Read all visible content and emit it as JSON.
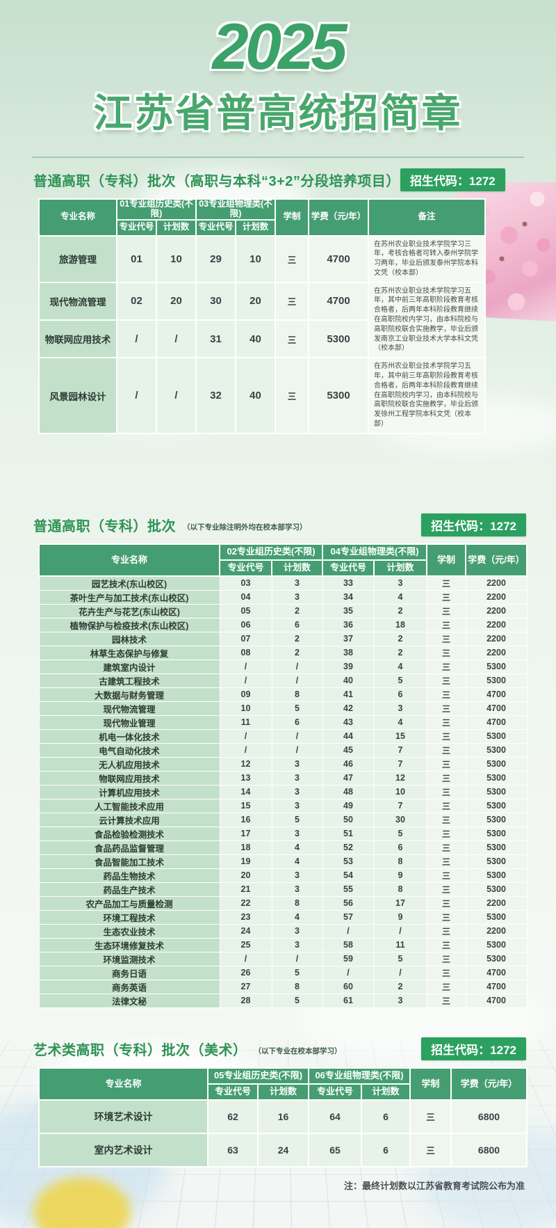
{
  "page": {
    "year": "2025",
    "title": "江苏省普高统招简章",
    "footer_note": "注：最终计划数以江苏省教育考试院公布为准"
  },
  "colors": {
    "accent_green": "#2e9355",
    "badge_bg": "#2ca05f",
    "table_header_bg": "#459e72",
    "name_column_bg": "#c3e1ca",
    "cell_bg": "#e7f2e8",
    "blossom_pink": "#f3bdd2"
  },
  "sections": [
    {
      "title": "普通高职（专科）批次（高职与本科“3+2”分段培养项目）",
      "note": "",
      "code_badge": "招生代码：1272",
      "table": {
        "col_name": "专业名称",
        "group_history": "01专业组历史类(不限)",
        "group_physics": "03专业组物理类(不限)",
        "sub_code": "专业代号",
        "sub_plan": "计划数",
        "col_term": "学制",
        "col_fee": "学费（元/年）",
        "col_remark": "备注",
        "rows": [
          {
            "name": "旅游管理",
            "h_code": "01",
            "h_plan": "10",
            "p_code": "29",
            "p_plan": "10",
            "term": "三",
            "fee": "4700",
            "remark": "在苏州农业职业技术学院学习三年，考核合格者可转入泰州学院学习两年，毕业后颁发泰州学院本科文凭（校本部）"
          },
          {
            "name": "现代物流管理",
            "h_code": "02",
            "h_plan": "20",
            "p_code": "30",
            "p_plan": "20",
            "term": "三",
            "fee": "4700",
            "remark": "在苏州农业职业技术学院学习五年，其中前三年高职阶段教育考核合格者，后两年本科阶段教育继续在高职院校内学习，由本科院校与高职院校联合实施教学，毕业后颁发南京工业职业技术大学本科文凭（校本部）"
          },
          {
            "name": "物联网应用技术",
            "h_code": "/",
            "h_plan": "/",
            "p_code": "31",
            "p_plan": "40",
            "term": "三",
            "fee": "5300"
          },
          {
            "name": "风景园林设计",
            "h_code": "/",
            "h_plan": "/",
            "p_code": "32",
            "p_plan": "40",
            "term": "三",
            "fee": "5300",
            "remark": "在苏州农业职业技术学院学习五年，其中前三年高职阶段教育考核合格者，后两年本科阶段教育继续在高职院校内学习，由本科院校与高职院校联合实施教学，毕业后颁发徐州工程学院本科文凭（校本部）"
          }
        ]
      }
    },
    {
      "title": "普通高职（专科）批次",
      "note": "（以下专业除注明外均在校本部学习）",
      "code_badge": "招生代码：1272",
      "table": {
        "col_name": "专业名称",
        "group_history": "02专业组历史类(不限)",
        "group_physics": "04专业组物理类(不限)",
        "sub_code": "专业代号",
        "sub_plan": "计划数",
        "col_term": "学制",
        "col_fee": "学费（元/年）",
        "rows": [
          [
            "园艺技术(东山校区)",
            "03",
            "3",
            "33",
            "3",
            "三",
            "2200"
          ],
          [
            "茶叶生产与加工技术(东山校区)",
            "04",
            "3",
            "34",
            "4",
            "三",
            "2200"
          ],
          [
            "花卉生产与花艺(东山校区)",
            "05",
            "2",
            "35",
            "2",
            "三",
            "2200"
          ],
          [
            "植物保护与检疫技术(东山校区)",
            "06",
            "6",
            "36",
            "18",
            "三",
            "2200"
          ],
          [
            "园林技术",
            "07",
            "2",
            "37",
            "2",
            "三",
            "2200"
          ],
          [
            "林草生态保护与修复",
            "08",
            "2",
            "38",
            "2",
            "三",
            "2200"
          ],
          [
            "建筑室内设计",
            "/",
            "/",
            "39",
            "4",
            "三",
            "5300"
          ],
          [
            "古建筑工程技术",
            "/",
            "/",
            "40",
            "5",
            "三",
            "5300"
          ],
          [
            "大数据与财务管理",
            "09",
            "8",
            "41",
            "6",
            "三",
            "4700"
          ],
          [
            "现代物流管理",
            "10",
            "5",
            "42",
            "3",
            "三",
            "4700"
          ],
          [
            "现代物业管理",
            "11",
            "6",
            "43",
            "4",
            "三",
            "4700"
          ],
          [
            "机电一体化技术",
            "/",
            "/",
            "44",
            "15",
            "三",
            "5300"
          ],
          [
            "电气自动化技术",
            "/",
            "/",
            "45",
            "7",
            "三",
            "5300"
          ],
          [
            "无人机应用技术",
            "12",
            "3",
            "46",
            "7",
            "三",
            "5300"
          ],
          [
            "物联网应用技术",
            "13",
            "3",
            "47",
            "12",
            "三",
            "5300"
          ],
          [
            "计算机应用技术",
            "14",
            "3",
            "48",
            "10",
            "三",
            "5300"
          ],
          [
            "人工智能技术应用",
            "15",
            "3",
            "49",
            "7",
            "三",
            "5300"
          ],
          [
            "云计算技术应用",
            "16",
            "5",
            "50",
            "30",
            "三",
            "5300"
          ],
          [
            "食品检验检测技术",
            "17",
            "3",
            "51",
            "5",
            "三",
            "5300"
          ],
          [
            "食品药品监督管理",
            "18",
            "4",
            "52",
            "6",
            "三",
            "5300"
          ],
          [
            "食品智能加工技术",
            "19",
            "4",
            "53",
            "8",
            "三",
            "5300"
          ],
          [
            "药品生物技术",
            "20",
            "3",
            "54",
            "9",
            "三",
            "5300"
          ],
          [
            "药品生产技术",
            "21",
            "3",
            "55",
            "8",
            "三",
            "5300"
          ],
          [
            "农产品加工与质量检测",
            "22",
            "8",
            "56",
            "17",
            "三",
            "2200"
          ],
          [
            "环境工程技术",
            "23",
            "4",
            "57",
            "9",
            "三",
            "5300"
          ],
          [
            "生态农业技术",
            "24",
            "3",
            "/",
            "/",
            "三",
            "2200"
          ],
          [
            "生态环境修复技术",
            "25",
            "3",
            "58",
            "11",
            "三",
            "5300"
          ],
          [
            "环境监测技术",
            "/",
            "/",
            "59",
            "5",
            "三",
            "5300"
          ],
          [
            "商务日语",
            "26",
            "5",
            "/",
            "/",
            "三",
            "4700"
          ],
          [
            "商务英语",
            "27",
            "8",
            "60",
            "2",
            "三",
            "4700"
          ],
          [
            "法律文秘",
            "28",
            "5",
            "61",
            "3",
            "三",
            "4700"
          ]
        ]
      }
    },
    {
      "title": "艺术类高职（专科）批次（美术）",
      "note": "（以下专业在校本部学习）",
      "code_badge": "招生代码：1272",
      "table": {
        "col_name": "专业名称",
        "group_history": "05专业组历史类(不限)",
        "group_physics": "06专业组物理类(不限)",
        "sub_code": "专业代号",
        "sub_plan": "计划数",
        "col_term": "学制",
        "col_fee": "学费（元/年）",
        "rows": [
          [
            "环境艺术设计",
            "62",
            "16",
            "64",
            "6",
            "三",
            "6800"
          ],
          [
            "室内艺术设计",
            "63",
            "24",
            "65",
            "6",
            "三",
            "6800"
          ]
        ]
      }
    }
  ]
}
